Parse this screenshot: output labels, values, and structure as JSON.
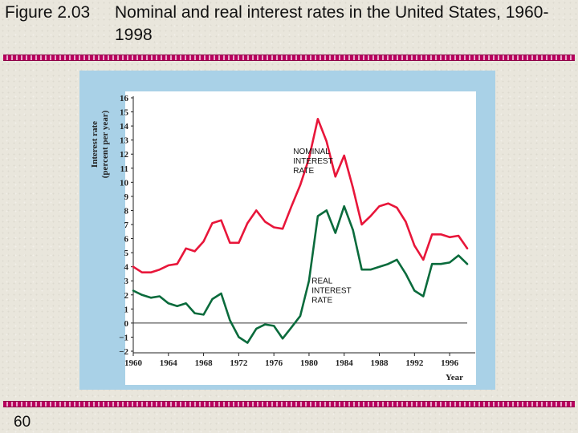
{
  "slide": {
    "figure_label": "Figure 2.03",
    "title_text": "Nominal and real interest rates in the United States, 1960-1998",
    "page_number": "60"
  },
  "colors": {
    "nominal": "#e8163a",
    "real": "#0a6b3c",
    "frame": "#a9d1e7",
    "rule": "#b8005e"
  },
  "chart_data": {
    "type": "line",
    "ylabel_line1": "Interest rate",
    "ylabel_line2": "(percent per year)",
    "xlabel": "Year",
    "ylim": [
      -2,
      16
    ],
    "xlim": [
      1960,
      1998
    ],
    "yticks": [
      -2,
      -1,
      0,
      1,
      2,
      3,
      4,
      5,
      6,
      7,
      8,
      9,
      10,
      11,
      12,
      13,
      14,
      15,
      16
    ],
    "xticks": [
      1960,
      1964,
      1968,
      1972,
      1976,
      1980,
      1984,
      1988,
      1992,
      1996
    ],
    "zero_line": true,
    "grid": false,
    "annotations": [
      {
        "lines": [
          "NOMINAL",
          "INTEREST",
          "RATE"
        ],
        "x": 1978.2,
        "y": 12.0
      },
      {
        "lines": [
          "REAL",
          "INTEREST",
          "RATE"
        ],
        "x": 1980.3,
        "y": 2.8
      }
    ],
    "series": [
      {
        "key": "nominal",
        "x": [
          1960,
          1961,
          1962,
          1963,
          1964,
          1965,
          1966,
          1967,
          1968,
          1969,
          1970,
          1971,
          1972,
          1973,
          1974,
          1975,
          1976,
          1977,
          1978,
          1979,
          1980,
          1981,
          1982,
          1983,
          1984,
          1985,
          1986,
          1987,
          1988,
          1989,
          1990,
          1991,
          1992,
          1993,
          1994,
          1995,
          1996,
          1997,
          1998
        ],
        "y": [
          4.0,
          3.6,
          3.6,
          3.8,
          4.1,
          4.2,
          5.3,
          5.1,
          5.8,
          7.1,
          7.3,
          5.7,
          5.7,
          7.1,
          8.0,
          7.2,
          6.8,
          6.7,
          8.3,
          9.8,
          11.7,
          14.5,
          12.9,
          10.4,
          11.9,
          9.6,
          7.0,
          7.6,
          8.3,
          8.5,
          8.2,
          7.2,
          5.5,
          4.5,
          6.3,
          6.3,
          6.1,
          6.2,
          5.3
        ]
      },
      {
        "key": "real",
        "x": [
          1960,
          1961,
          1962,
          1963,
          1964,
          1965,
          1966,
          1967,
          1968,
          1969,
          1970,
          1971,
          1972,
          1973,
          1974,
          1975,
          1976,
          1977,
          1978,
          1979,
          1980,
          1981,
          1982,
          1983,
          1984,
          1985,
          1986,
          1987,
          1988,
          1989,
          1990,
          1991,
          1992,
          1993,
          1994,
          1995,
          1996,
          1997,
          1998
        ],
        "y": [
          2.3,
          2.0,
          1.8,
          1.9,
          1.4,
          1.2,
          1.4,
          0.7,
          0.6,
          1.7,
          2.1,
          0.2,
          -1.0,
          -1.4,
          -0.4,
          -0.1,
          -0.2,
          -1.1,
          -0.3,
          0.5,
          3.0,
          7.6,
          8.0,
          6.4,
          8.3,
          6.6,
          3.8,
          3.8,
          4.0,
          4.2,
          4.5,
          3.5,
          2.3,
          1.9,
          4.2,
          4.2,
          4.3,
          4.8,
          4.2
        ]
      }
    ]
  }
}
